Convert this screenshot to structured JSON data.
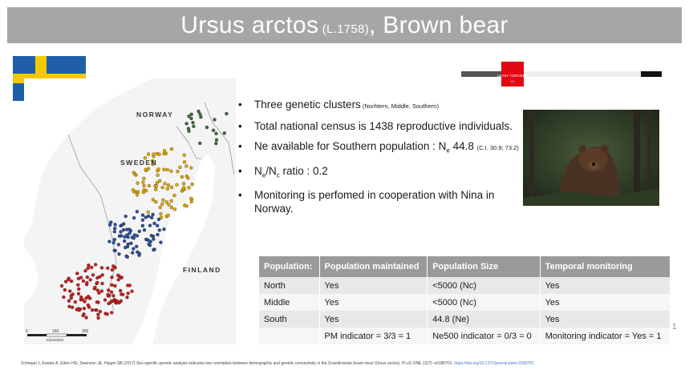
{
  "title": {
    "main": "Ursus arctos",
    "authority": " (L.1758)",
    "rest": ", Brown bear"
  },
  "colors": {
    "title_bg": "#a6a6a6",
    "flag_blue": "#1f5fa8",
    "flag_yellow": "#f6c800",
    "table_header": "#9a9a9a"
  },
  "map": {
    "countries": {
      "norway": "NORWAY",
      "sweden": "SWEDEN",
      "finland": "FINLAND"
    },
    "scale": {
      "ticks": [
        "0",
        "150",
        "300"
      ],
      "unit": "Kilometers"
    }
  },
  "bullets": [
    {
      "text": "Three genetic clusters",
      "note": " (Norhtern, Middle, Southern)"
    },
    {
      "text": "Total national census is 1438 reproductive individuals."
    },
    {
      "text": "Ne available for Southern population :  N",
      "sub": "e",
      "value": "  44.8 ",
      "note": "(C.I. 30.9; 73.2)"
    },
    {
      "text": "N",
      "sub": "e",
      "mid": "/N",
      "sub2": "c",
      "rest": "  ratio : 0.2"
    },
    {
      "text": "Monitoring is perfomed in cooperation with Nina in Norway."
    }
  ],
  "iucn": {
    "badge": "LEAST CONCERN",
    "code": "LC"
  },
  "table": {
    "headers": [
      "Population:",
      "Population maintained",
      "Population Size",
      "Temporal monitoring"
    ],
    "rows": [
      [
        "North",
        "Yes",
        "<5000 (Nc)",
        "Yes"
      ],
      [
        "Middle",
        "Yes",
        "<5000 (Nc)",
        "Yes"
      ],
      [
        "South",
        "Yes",
        "44.8 (Ne)",
        "Yes"
      ],
      [
        "",
        "PM indicator = 3/3 = 1",
        "Ne500 indicator = 0/3 = 0",
        "Monitoring indicator = Yes = 1"
      ]
    ]
  },
  "page_number": "1",
  "citation": {
    "text": "Schregel J, Kopatz A, Eiken HG, Swenson JE, Hagen SB (2017) Sex-specific genetic analysis indicates low correlation between demographic and genetic connectivity in the Scandinavian brown bear (Ursus arctos). PLoS ONE 12(7): e0180701. ",
    "link": "https://doi.org/10.1371/journal.pone.0180701"
  }
}
